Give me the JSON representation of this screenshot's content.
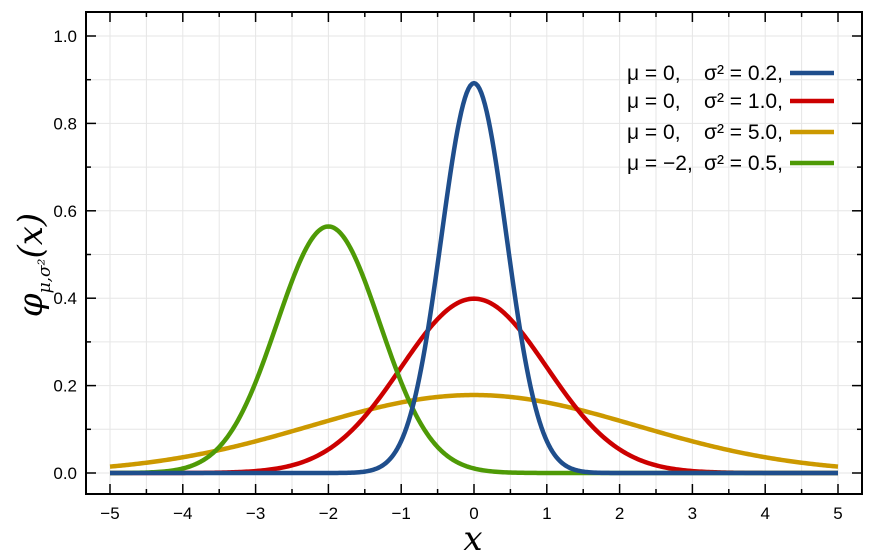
{
  "chart_data": {
    "type": "line",
    "xlabel": "x",
    "ylabel": "φμ,σ²(x)",
    "xlim": [
      -5,
      5
    ],
    "ylim": [
      0,
      1.0
    ],
    "grid": true,
    "legend_position": "top-right",
    "x_ticks": [
      "−5",
      "−4",
      "−3",
      "−2",
      "−1",
      "0",
      "1",
      "2",
      "3",
      "4",
      "5"
    ],
    "y_ticks": [
      "0.0",
      "0.2",
      "0.4",
      "0.6",
      "0.8",
      "1.0"
    ],
    "series": [
      {
        "mu": 0,
        "sigma2": 0.2,
        "color": "#1f4e8c",
        "legend": {
          "mu": "μ = 0,",
          "sigma": "σ² = 0.2,"
        }
      },
      {
        "mu": 0,
        "sigma2": 1.0,
        "color": "#cc0000",
        "legend": {
          "mu": "μ = 0,",
          "sigma": "σ² = 1.0,"
        }
      },
      {
        "mu": 0,
        "sigma2": 5.0,
        "color": "#cc9900",
        "legend": {
          "mu": "μ = 0,",
          "sigma": "σ² = 5.0,"
        }
      },
      {
        "mu": -2,
        "sigma2": 0.5,
        "color": "#4e9a06",
        "legend": {
          "mu": "μ = −2,",
          "sigma": "σ² = 0.5,"
        }
      }
    ]
  }
}
